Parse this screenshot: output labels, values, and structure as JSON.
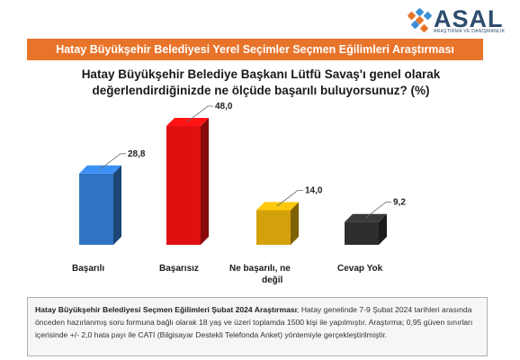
{
  "brand": {
    "name": "ASAL",
    "tagline": "ARAŞTIRMA VE DANIŞMANLIK",
    "colors": [
      "#2f4d6e",
      "#e8742a"
    ]
  },
  "banner": {
    "title": "Hatay Büyükşehir Belediyesi Yerel Seçimler Seçmen Eğilimleri Araştırması",
    "color": "#e8742a"
  },
  "question": {
    "line1": "Hatay Büyükşehir Belediye Başkanı Lütfü Savaş'ı genel olarak",
    "line2": "değerlendirdiğinizde ne ölçüde başarılı buluyorsunuz? (%)"
  },
  "chart_data": {
    "type": "bar",
    "style": "3d",
    "categories": [
      "Başarılı",
      "Başarısız",
      "Ne başarılı, ne değil",
      "Cevap Yok"
    ],
    "category_lines": [
      [
        "Başarılı"
      ],
      [
        "Başarısız"
      ],
      [
        "Ne başarılı, ne",
        "değil"
      ],
      [
        "Cevap Yok"
      ]
    ],
    "values": [
      28.8,
      48.0,
      14.0,
      9.2
    ],
    "value_labels": [
      "28,8",
      "48,0",
      "14,0",
      "9,2"
    ],
    "colors": [
      "#2f74c4",
      "#e01010",
      "#d4a10a",
      "#2e2e2e"
    ],
    "ylim": [
      0,
      50
    ],
    "grid": false,
    "legend": "none"
  },
  "footnote": {
    "bold": "Hatay Büyükşehir Belediyesi Seçmen Eğilimleri Şubat 2024 Araştırması",
    "text": "; Hatay genelinde 7-9 Şubat 2024 tarihleri arasında önceden hazırlanmış soru formuna bağlı olarak 18 yaş ve üzeri toplamda 1500 kişi ile yapılmıştır. Araştırma; 0,95 güven sınırları içerisinde +/- 2,0 hata payı ile CATI (Bilgisayar Destekli Telefonda Anket) yöntemiyle gerçekleştirilmiştir."
  }
}
